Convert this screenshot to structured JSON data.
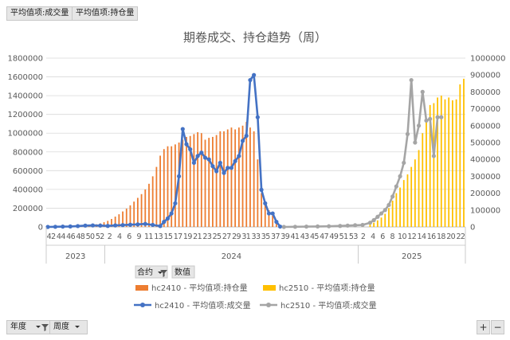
{
  "buttons": {
    "top": [
      "平均值项:成交量",
      "平均值项:持仓量"
    ],
    "legend_fields": [
      "合约",
      "数值"
    ],
    "bottom": [
      "年度",
      "周度"
    ],
    "plus": "+",
    "minus": "−"
  },
  "icons": {
    "filter": "filter-icon",
    "dropdown": "chevron-down-icon"
  },
  "chart_data": {
    "type": "bar+line",
    "title": "期卷成交、持仓趋势（周）",
    "yleft": {
      "min": 0,
      "max": 1800000,
      "ticks": [
        "0",
        "200000",
        "400000",
        "600000",
        "800000",
        "1000000",
        "1200000",
        "1400000",
        "1600000",
        "1800000"
      ]
    },
    "yright": {
      "min": 0,
      "max": 1000000,
      "ticks": [
        "0",
        "100000",
        "200000",
        "300000",
        "400000",
        "500000",
        "600000",
        "700000",
        "800000",
        "900000",
        "1000000"
      ]
    },
    "x_tick_labels": [
      "42",
      "44",
      "46",
      "48",
      "50",
      "52",
      "2",
      "4",
      "6",
      "9",
      "11",
      "13",
      "15",
      "17",
      "19",
      "21",
      "23",
      "25",
      "27",
      "29",
      "31",
      "33",
      "35",
      "37",
      "39",
      "41",
      "43",
      "45",
      "47",
      "49",
      "51",
      "53",
      "2",
      "4",
      "6",
      "8",
      "10",
      "12",
      "14",
      "16",
      "18",
      "20",
      "22"
    ],
    "year_labels": [
      {
        "year": "2023",
        "from": 0,
        "to": 6
      },
      {
        "year": "2024",
        "from": 6,
        "to": 32
      },
      {
        "year": "2025",
        "from": 32,
        "to": 43
      }
    ],
    "series": [
      {
        "name": "hc2410 - 平均值项:持仓量",
        "type": "bar",
        "axis": "left",
        "color": "#ED7D31",
        "points": [
          [
            6,
            1000
          ],
          [
            7,
            2000
          ],
          [
            8,
            4000
          ],
          [
            9,
            7000
          ],
          [
            10,
            10000
          ],
          [
            11,
            15000
          ],
          [
            12,
            20000
          ],
          [
            13,
            28000
          ],
          [
            14,
            38000
          ],
          [
            15,
            50000
          ],
          [
            16,
            65000
          ],
          [
            17,
            85000
          ],
          [
            18,
            110000
          ],
          [
            19,
            135000
          ],
          [
            20,
            165000
          ],
          [
            21,
            195000
          ],
          [
            22,
            230000
          ],
          [
            23,
            270000
          ],
          [
            24,
            310000
          ],
          [
            25,
            350000
          ],
          [
            26,
            400000
          ],
          [
            27,
            460000
          ],
          [
            28,
            540000
          ],
          [
            29,
            640000
          ],
          [
            30,
            760000
          ],
          [
            31,
            830000
          ],
          [
            32,
            860000
          ],
          [
            33,
            860000
          ],
          [
            34,
            880000
          ],
          [
            35,
            900000
          ],
          [
            36,
            930000
          ],
          [
            37,
            960000
          ],
          [
            38,
            970000
          ],
          [
            39,
            990000
          ],
          [
            40,
            1010000
          ],
          [
            41,
            1000000
          ],
          [
            42,
            930000
          ],
          [
            43,
            950000
          ],
          [
            44,
            960000
          ],
          [
            45,
            980000
          ],
          [
            46,
            1020000
          ],
          [
            47,
            1020000
          ],
          [
            48,
            1040000
          ],
          [
            49,
            1060000
          ],
          [
            50,
            1040000
          ],
          [
            51,
            1060000
          ],
          [
            52,
            1080000
          ],
          [
            53,
            1120000
          ],
          [
            54,
            1060000
          ],
          [
            55,
            1020000
          ],
          [
            56,
            720000
          ],
          [
            57,
            360000
          ],
          [
            58,
            260000
          ],
          [
            59,
            180000
          ],
          [
            60,
            120000
          ],
          [
            61,
            60000
          ],
          [
            62,
            20000
          ]
        ]
      },
      {
        "name": "hc2510 - 平均值项:持仓量",
        "type": "bar",
        "axis": "left",
        "color": "#FFC000",
        "points": [
          [
            64,
            1000
          ],
          [
            66,
            1500
          ],
          [
            68,
            2000
          ],
          [
            70,
            3000
          ],
          [
            72,
            4000
          ],
          [
            74,
            5000
          ],
          [
            76,
            6000
          ],
          [
            78,
            8000
          ],
          [
            80,
            10000
          ],
          [
            82,
            15000
          ],
          [
            84,
            20000
          ],
          [
            86,
            30000
          ],
          [
            87,
            45000
          ],
          [
            88,
            70000
          ],
          [
            89,
            100000
          ],
          [
            90,
            140000
          ],
          [
            91,
            200000
          ],
          [
            92,
            280000
          ],
          [
            93,
            360000
          ],
          [
            94,
            420000
          ],
          [
            95,
            500000
          ],
          [
            96,
            560000
          ],
          [
            97,
            640000
          ],
          [
            98,
            720000
          ],
          [
            99,
            820000
          ],
          [
            100,
            1000000
          ],
          [
            101,
            1140000
          ],
          [
            102,
            1300000
          ],
          [
            103,
            1320000
          ],
          [
            104,
            1380000
          ],
          [
            105,
            1400000
          ],
          [
            106,
            1360000
          ],
          [
            107,
            1380000
          ],
          [
            108,
            1350000
          ],
          [
            109,
            1360000
          ],
          [
            110,
            1520000
          ],
          [
            111,
            1580000
          ]
        ]
      },
      {
        "name": "hc2410 - 平均值项:成交量",
        "type": "line",
        "axis": "right",
        "color": "#4472C4",
        "points": [
          [
            0,
            0
          ],
          [
            2,
            1000
          ],
          [
            4,
            2000
          ],
          [
            6,
            3000
          ],
          [
            8,
            5000
          ],
          [
            10,
            8000
          ],
          [
            12,
            9000
          ],
          [
            14,
            8000
          ],
          [
            16,
            6000
          ],
          [
            18,
            9000
          ],
          [
            20,
            11000
          ],
          [
            22,
            13000
          ],
          [
            24,
            15000
          ],
          [
            26,
            18000
          ],
          [
            28,
            12000
          ],
          [
            30,
            5000
          ],
          [
            31,
            30000
          ],
          [
            32,
            50000
          ],
          [
            33,
            80000
          ],
          [
            34,
            140000
          ],
          [
            35,
            300000
          ],
          [
            36,
            580000
          ],
          [
            37,
            490000
          ],
          [
            38,
            460000
          ],
          [
            39,
            380000
          ],
          [
            40,
            420000
          ],
          [
            41,
            440000
          ],
          [
            42,
            410000
          ],
          [
            43,
            400000
          ],
          [
            44,
            360000
          ],
          [
            45,
            330000
          ],
          [
            46,
            380000
          ],
          [
            47,
            320000
          ],
          [
            48,
            350000
          ],
          [
            49,
            350000
          ],
          [
            50,
            390000
          ],
          [
            51,
            420000
          ],
          [
            52,
            510000
          ],
          [
            53,
            540000
          ],
          [
            54,
            870000
          ],
          [
            55,
            900000
          ],
          [
            56,
            650000
          ],
          [
            57,
            220000
          ],
          [
            58,
            140000
          ],
          [
            59,
            80000
          ],
          [
            60,
            80000
          ],
          [
            61,
            30000
          ],
          [
            62,
            2000
          ]
        ]
      },
      {
        "name": "hc2510 - 平均值项:成交量",
        "type": "line",
        "axis": "right",
        "color": "#A5A5A5",
        "points": [
          [
            63,
            0
          ],
          [
            66,
            1000
          ],
          [
            69,
            2000
          ],
          [
            72,
            3000
          ],
          [
            75,
            4000
          ],
          [
            78,
            6000
          ],
          [
            80,
            8000
          ],
          [
            82,
            10000
          ],
          [
            84,
            12000
          ],
          [
            86,
            25000
          ],
          [
            87,
            40000
          ],
          [
            88,
            60000
          ],
          [
            89,
            80000
          ],
          [
            90,
            100000
          ],
          [
            91,
            130000
          ],
          [
            92,
            180000
          ],
          [
            93,
            240000
          ],
          [
            94,
            300000
          ],
          [
            95,
            380000
          ],
          [
            96,
            550000
          ],
          [
            97,
            870000
          ],
          [
            98,
            500000
          ],
          [
            99,
            600000
          ],
          [
            100,
            800000
          ],
          [
            101,
            630000
          ],
          [
            102,
            640000
          ],
          [
            103,
            420000
          ],
          [
            104,
            650000
          ],
          [
            105,
            650000
          ]
        ]
      }
    ],
    "legend_position": "bottom"
  }
}
